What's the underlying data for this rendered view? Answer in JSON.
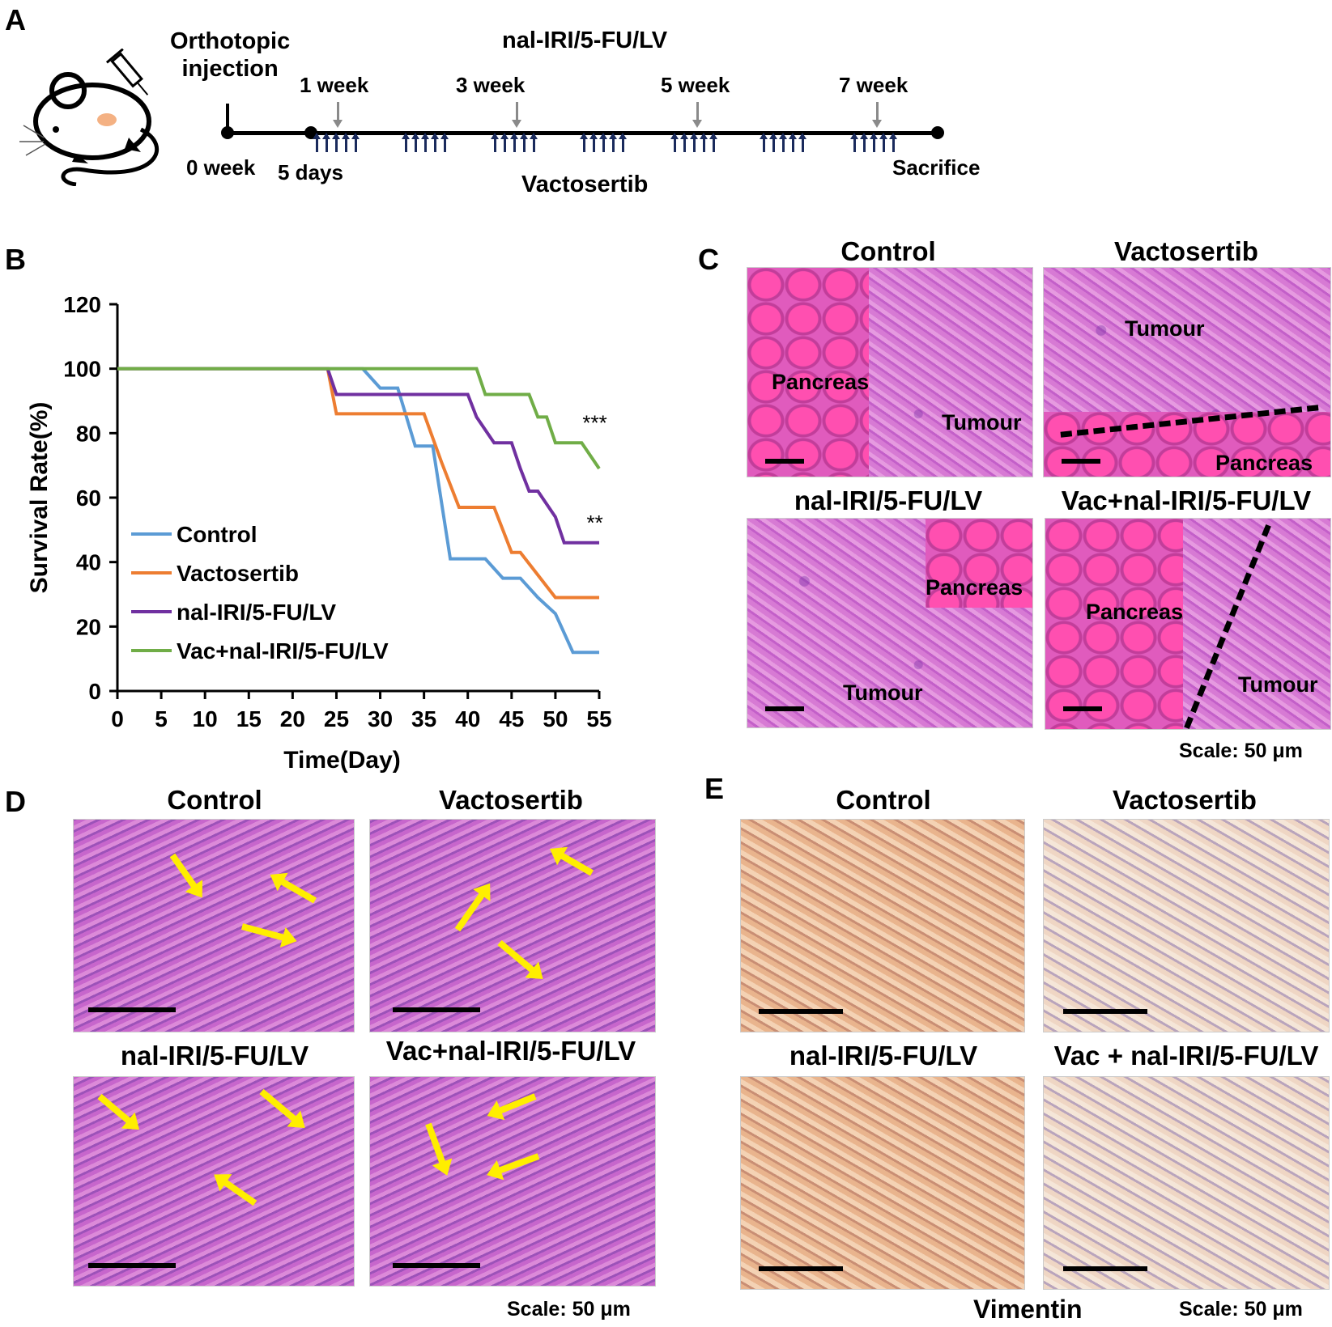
{
  "panelA": {
    "label": "A",
    "injection": "Orthotopic\ninjection",
    "drug_top": "nal-IRI/5-FU/LV",
    "weeks": [
      "1 week",
      "3 week",
      "5 week",
      "7 week"
    ],
    "week0": "0 week",
    "days5": "5 days",
    "drug_bottom": "Vactosertib",
    "sacrifice": "Sacrifice"
  },
  "panelB": {
    "label": "B"
  },
  "panelC": {
    "label": "C",
    "titles": [
      "Control",
      "Vactosertib",
      "nal-IRI/5-FU/LV",
      "Vac+nal-IRI/5-FU/LV"
    ],
    "tissue": {
      "pancreas": "Pancreas",
      "tumour": "Tumour"
    },
    "scale": "Scale: 50 μm"
  },
  "panelD": {
    "label": "D",
    "titles": [
      "Control",
      "Vactosertib",
      "nal-IRI/5-FU/LV",
      "Vac+nal-IRI/5-FU/LV"
    ],
    "scale": "Scale: 50 μm"
  },
  "panelE": {
    "label": "E",
    "titles": [
      "Control",
      "Vactosertib",
      "nal-IRI/5-FU/LV",
      "Vac + nal-IRI/5-FU/LV"
    ],
    "marker": "Vimentin",
    "scale": "Scale: 50 μm"
  },
  "chart_data": {
    "type": "line",
    "xlabel": "Time(Day)",
    "ylabel": "Survival Rate(%)",
    "xlim": [
      0,
      55
    ],
    "ylim": [
      0,
      120
    ],
    "xticks": [
      0,
      5,
      10,
      15,
      20,
      25,
      30,
      35,
      40,
      45,
      50,
      55
    ],
    "yticks": [
      0,
      20,
      40,
      60,
      80,
      100,
      120
    ],
    "grid": false,
    "legend_position": "bottom-left",
    "series": [
      {
        "name": "Control",
        "color": "#5b9bd5",
        "x": [
          0,
          28,
          30,
          32,
          34,
          36,
          38,
          40,
          42,
          44,
          46,
          48,
          50,
          52,
          55
        ],
        "y": [
          100,
          100,
          94,
          94,
          76,
          76,
          41,
          41,
          41,
          35,
          35,
          29,
          24,
          12,
          12
        ]
      },
      {
        "name": "Vactosertib",
        "color": "#ed7d31",
        "x": [
          0,
          24,
          25,
          27,
          29,
          31,
          35,
          37,
          39,
          41,
          43,
          45,
          46,
          48,
          50,
          55
        ],
        "y": [
          100,
          100,
          86,
          86,
          86,
          86,
          86,
          71,
          57,
          57,
          57,
          43,
          43,
          36,
          29,
          29
        ]
      },
      {
        "name": "nal-IRI/5-FU/LV",
        "color": "#7030a0",
        "x": [
          0,
          24,
          25,
          30,
          34,
          40,
          41,
          43,
          45,
          46,
          47,
          48,
          50,
          51,
          55
        ],
        "y": [
          100,
          100,
          92,
          92,
          92,
          92,
          85,
          77,
          77,
          69,
          62,
          62,
          54,
          46,
          46
        ]
      },
      {
        "name": "Vac+nal-IRI/5-FU/LV",
        "color": "#70ad47",
        "x": [
          0,
          41,
          42,
          44,
          46,
          47,
          48,
          49,
          50,
          51,
          52,
          53,
          55
        ],
        "y": [
          100,
          100,
          92,
          92,
          92,
          92,
          85,
          85,
          77,
          77,
          77,
          77,
          69
        ]
      }
    ],
    "annotations": [
      {
        "text": "***",
        "x": 54.5,
        "y": 81
      },
      {
        "text": "**",
        "x": 54.5,
        "y": 50
      }
    ]
  }
}
